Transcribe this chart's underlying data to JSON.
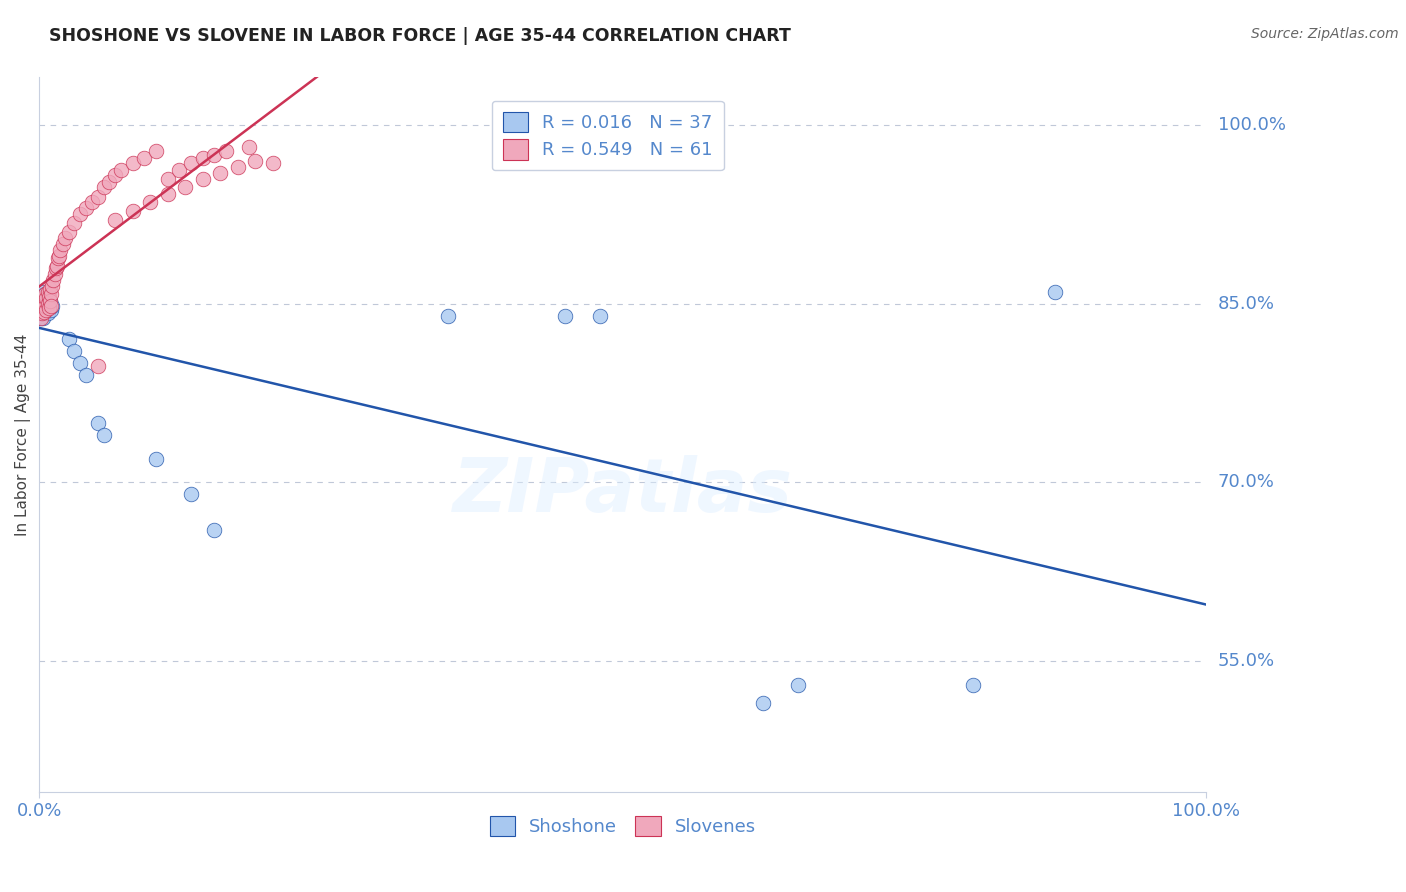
{
  "title": "SHOSHONE VS SLOVENE IN LABOR FORCE | AGE 35-44 CORRELATION CHART",
  "source": "Source: ZipAtlas.com",
  "ylabel": "In Labor Force | Age 35-44",
  "ytick_labels": [
    "100.0%",
    "85.0%",
    "70.0%",
    "55.0%"
  ],
  "ytick_values": [
    1.0,
    0.85,
    0.7,
    0.55
  ],
  "legend_label1": "Shoshone",
  "legend_label2": "Slovenes",
  "R1": 0.016,
  "N1": 37,
  "R2": 0.549,
  "N2": 61,
  "blue_color": "#a8c8f0",
  "pink_color": "#f0a8bc",
  "blue_line_color": "#2255aa",
  "pink_line_color": "#cc3355",
  "text_color": "#5588cc",
  "title_color": "#222222",
  "source_color": "#666666",
  "watermark": "ZIPatlas",
  "shoshone_x": [
    0.001,
    0.001,
    0.001,
    0.002,
    0.002,
    0.002,
    0.003,
    0.003,
    0.003,
    0.004,
    0.004,
    0.005,
    0.005,
    0.006,
    0.006,
    0.007,
    0.007,
    0.008,
    0.009,
    0.01,
    0.011,
    0.025,
    0.03,
    0.035,
    0.04,
    0.05,
    0.055,
    0.1,
    0.13,
    0.15,
    0.35,
    0.45,
    0.48,
    0.62,
    0.65,
    0.8,
    0.87
  ],
  "shoshone_y": [
    0.855,
    0.845,
    0.838,
    0.86,
    0.85,
    0.84,
    0.855,
    0.847,
    0.838,
    0.852,
    0.843,
    0.858,
    0.848,
    0.855,
    0.845,
    0.852,
    0.842,
    0.848,
    0.852,
    0.845,
    0.848,
    0.82,
    0.81,
    0.8,
    0.79,
    0.75,
    0.74,
    0.72,
    0.69,
    0.66,
    0.84,
    0.84,
    0.84,
    0.515,
    0.53,
    0.53,
    0.86
  ],
  "slovene_x": [
    0.001,
    0.001,
    0.002,
    0.002,
    0.003,
    0.003,
    0.004,
    0.004,
    0.005,
    0.005,
    0.006,
    0.006,
    0.007,
    0.007,
    0.008,
    0.008,
    0.009,
    0.009,
    0.01,
    0.01,
    0.011,
    0.012,
    0.013,
    0.014,
    0.015,
    0.016,
    0.017,
    0.018,
    0.02,
    0.022,
    0.025,
    0.03,
    0.035,
    0.04,
    0.045,
    0.05,
    0.055,
    0.06,
    0.065,
    0.07,
    0.08,
    0.09,
    0.1,
    0.11,
    0.12,
    0.13,
    0.14,
    0.15,
    0.16,
    0.18,
    0.05,
    0.065,
    0.08,
    0.095,
    0.11,
    0.125,
    0.14,
    0.155,
    0.17,
    0.185,
    0.2
  ],
  "slovene_y": [
    0.845,
    0.838,
    0.85,
    0.842,
    0.855,
    0.847,
    0.852,
    0.843,
    0.858,
    0.848,
    0.855,
    0.845,
    0.86,
    0.85,
    0.856,
    0.846,
    0.862,
    0.852,
    0.858,
    0.848,
    0.865,
    0.87,
    0.875,
    0.88,
    0.882,
    0.888,
    0.89,
    0.895,
    0.9,
    0.905,
    0.91,
    0.918,
    0.925,
    0.93,
    0.935,
    0.94,
    0.948,
    0.952,
    0.958,
    0.962,
    0.968,
    0.972,
    0.978,
    0.955,
    0.962,
    0.968,
    0.972,
    0.975,
    0.978,
    0.982,
    0.798,
    0.92,
    0.928,
    0.935,
    0.942,
    0.948,
    0.955,
    0.96,
    0.965,
    0.97,
    0.968
  ]
}
